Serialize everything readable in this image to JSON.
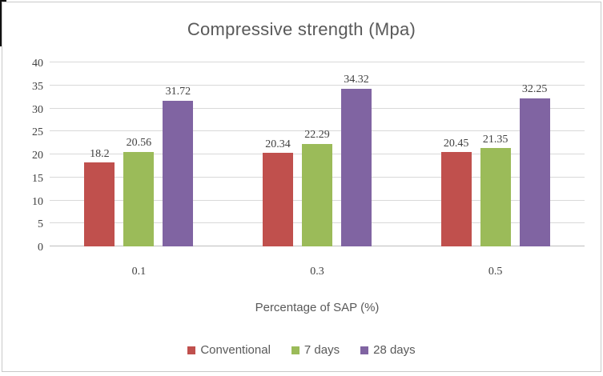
{
  "chart_data": {
    "type": "bar",
    "title": "Compressive strength (Mpa)",
    "xlabel": "Percentage of SAP (%)",
    "ylabel": "",
    "categories": [
      "0.1",
      "0.3",
      "0.5"
    ],
    "series": [
      {
        "name": "Conventional",
        "color": "#C0504D",
        "values": [
          18.2,
          20.34,
          20.45
        ],
        "labels": [
          "18.2",
          "20.34",
          "20.45"
        ]
      },
      {
        "name": "7 days",
        "color": "#9BBB59",
        "values": [
          20.56,
          22.29,
          21.35
        ],
        "labels": [
          "20.56",
          "22.29",
          "21.35"
        ]
      },
      {
        "name": "28 days",
        "color": "#8064A2",
        "values": [
          31.72,
          34.32,
          32.25
        ],
        "labels": [
          "31.72",
          "34.32",
          "32.25"
        ]
      }
    ],
    "ylim": [
      0,
      40
    ],
    "ytick_step": 5,
    "yticks": [
      "40",
      "35",
      "30",
      "25",
      "20",
      "15",
      "10",
      "5",
      "0"
    ],
    "grid": true,
    "legend_position": "bottom"
  },
  "style": {
    "grid_color": "#D9D9D9",
    "axis_line_color": "#BFBFBF",
    "tick_text_color": "#404040",
    "muted_text_color": "#595959",
    "chart_border_color": "#C9C9C9"
  }
}
